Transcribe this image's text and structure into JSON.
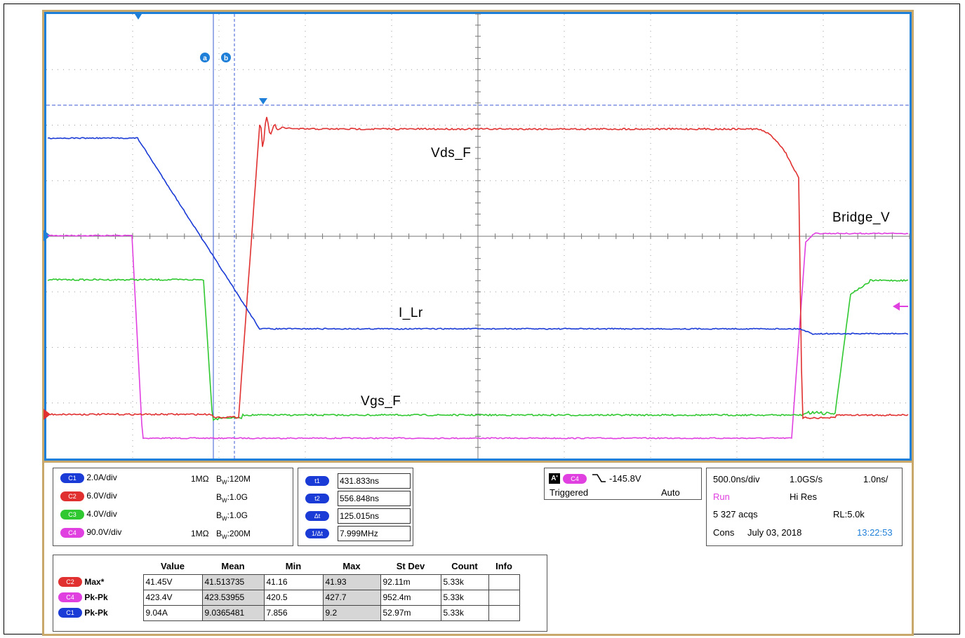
{
  "waveform_labels": {
    "vds": "Vds_F",
    "bridge": "Bridge_V",
    "ilr": "I_Lr",
    "vgs": "Vgs_F"
  },
  "cursor_markers": {
    "a": "a",
    "b": "b"
  },
  "channels": [
    {
      "tag": "C1",
      "scale": "2.0A/div",
      "imp": "1MΩ",
      "bw": "B",
      "bwsub": "W",
      "bwval": ":120M"
    },
    {
      "tag": "C2",
      "scale": "6.0V/div",
      "imp": "",
      "bw": "B",
      "bwsub": "W",
      "bwval": ":1.0G"
    },
    {
      "tag": "C3",
      "scale": "4.0V/div",
      "imp": "",
      "bw": "B",
      "bwsub": "W",
      "bwval": ":1.0G"
    },
    {
      "tag": "C4",
      "scale": "90.0V/div",
      "imp": "1MΩ",
      "bw": "B",
      "bwsub": "W",
      "bwval": ":200M"
    }
  ],
  "cursors": [
    {
      "tag": "t1",
      "value": "431.833ns"
    },
    {
      "tag": "t2",
      "value": "556.848ns"
    },
    {
      "tag": "Δt",
      "value": "125.015ns"
    },
    {
      "tag": "1/Δt",
      "value": "7.999MHz"
    }
  ],
  "trigger": {
    "mode_tag": "A'",
    "source": "C4",
    "level": "-145.8V",
    "state": "Triggered",
    "mode": "Auto"
  },
  "acquisition": {
    "timebase": "500.0ns/div",
    "rate": "1.0GS/s",
    "resolution": "1.0ns/",
    "run": "Run",
    "hires": "Hi Res",
    "acqs": "5 327 acqs",
    "rl": "RL:5.0k",
    "cons": "Cons",
    "date": "July 03, 2018",
    "time": "13:22:53"
  },
  "measurements": {
    "headers": [
      "Value",
      "Mean",
      "Min",
      "Max",
      "St Dev",
      "Count",
      "Info"
    ],
    "rows": [
      {
        "tag": "C2",
        "name": "Max*",
        "value": "41.45V",
        "mean": "41.513735",
        "min": "41.16",
        "max": "41.93",
        "stdev": "92.11m",
        "count": "5.33k",
        "info": ""
      },
      {
        "tag": "C4",
        "name": "Pk-Pk",
        "value": "423.4V",
        "mean": "423.53955",
        "min": "420.5",
        "max": "427.7",
        "stdev": "952.4m",
        "count": "5.33k",
        "info": ""
      },
      {
        "tag": "C1",
        "name": "Pk-Pk",
        "value": "9.04A",
        "mean": "9.0365481",
        "min": "7.856",
        "max": "9.2",
        "stdev": "52.97m",
        "count": "5.33k",
        "info": ""
      }
    ]
  },
  "colors": {
    "c1": "#1a3bd6",
    "c2": "#e03030",
    "c3": "#30c830",
    "c4": "#e040e0",
    "grid_border": "#1e7fd8",
    "frame": "#c9a86c"
  }
}
